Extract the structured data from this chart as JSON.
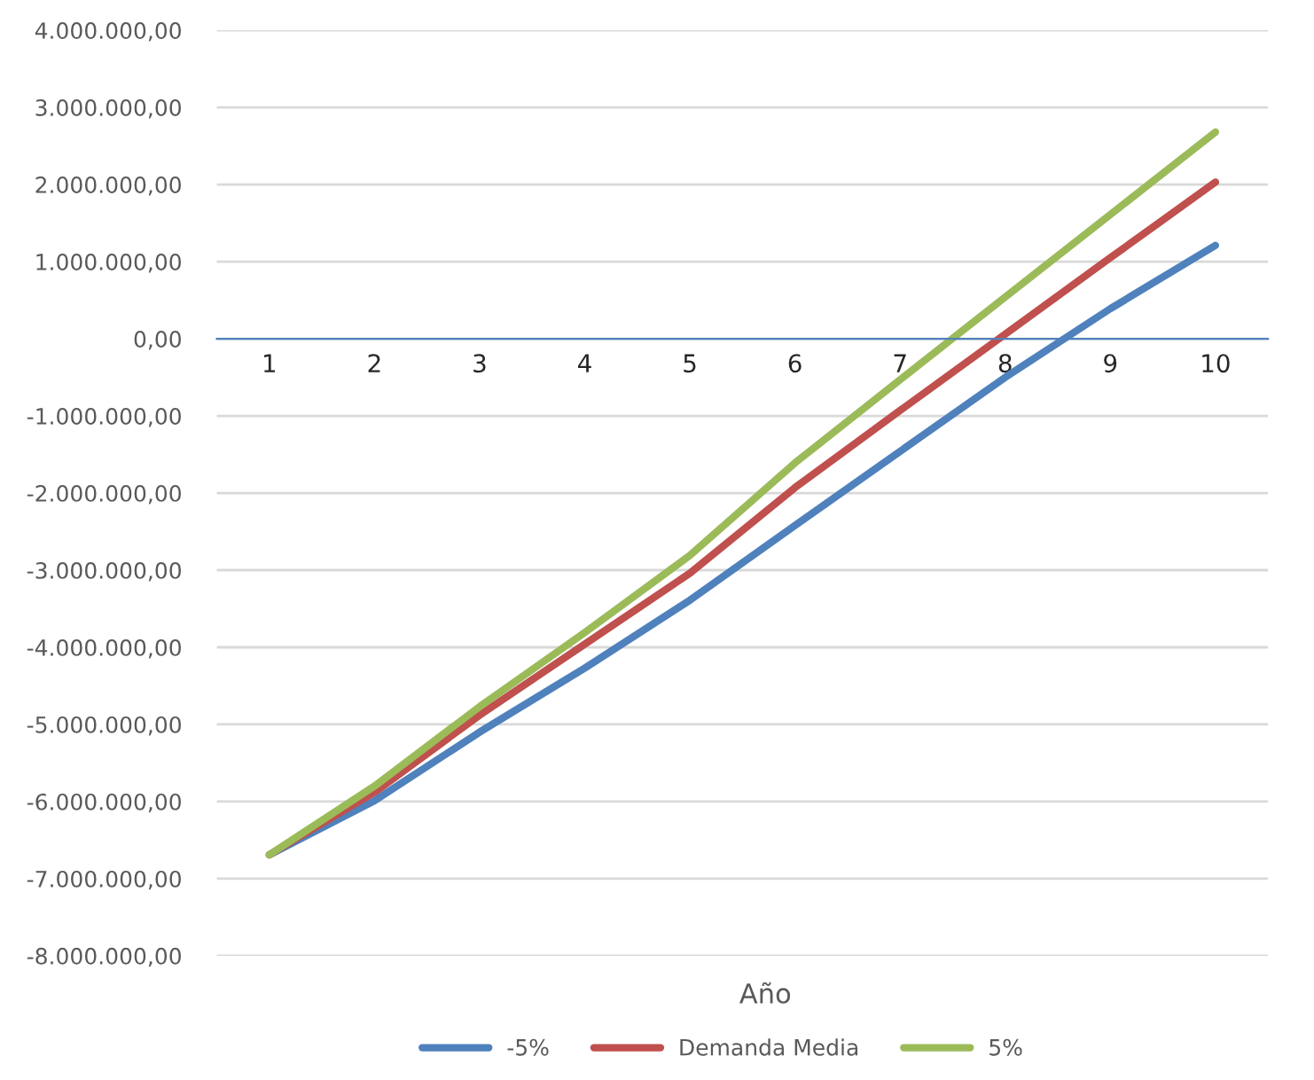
{
  "chart_data": {
    "type": "line",
    "xlabel": "Año",
    "categories": [
      "1",
      "2",
      "3",
      "4",
      "5",
      "6",
      "7",
      "8",
      "9",
      "10"
    ],
    "series": [
      {
        "name": "-5%",
        "color": "#4f81bd",
        "values": [
          -6690000,
          -5990000,
          -5100000,
          -4270000,
          -3390000,
          -2420000,
          -1460000,
          -500000,
          390000,
          1210000
        ]
      },
      {
        "name": "Demanda Media",
        "color": "#c0504d",
        "values": [
          -6690000,
          -5880000,
          -4880000,
          -3960000,
          -3040000,
          -1930000,
          -930000,
          60000,
          1050000,
          2030000
        ]
      },
      {
        "name": "5%",
        "color": "#9bbb59",
        "values": [
          -6690000,
          -5800000,
          -4770000,
          -3810000,
          -2810000,
          -1610000,
          -530000,
          540000,
          1610000,
          2680000
        ]
      }
    ],
    "ylim": [
      -8000000,
      4000000
    ],
    "yticks": [
      {
        "value": 4000000,
        "label": "4.000.000,00"
      },
      {
        "value": 3000000,
        "label": "3.000.000,00"
      },
      {
        "value": 2000000,
        "label": "2.000.000,00"
      },
      {
        "value": 1000000,
        "label": "1.000.000,00"
      },
      {
        "value": 0,
        "label": "0,00"
      },
      {
        "value": -1000000,
        "label": "-1.000.000,00"
      },
      {
        "value": -2000000,
        "label": "-2.000.000,00"
      },
      {
        "value": -3000000,
        "label": "-3.000.000,00"
      },
      {
        "value": -4000000,
        "label": "-4.000.000,00"
      },
      {
        "value": -5000000,
        "label": "-5.000.000,00"
      },
      {
        "value": -6000000,
        "label": "-6.000.000,00"
      },
      {
        "value": -7000000,
        "label": "-7.000.000,00"
      },
      {
        "value": -8000000,
        "label": "-8.000.000,00"
      }
    ],
    "grid": "y",
    "legend": "bottom",
    "marker": "none",
    "line_style": "solid"
  }
}
